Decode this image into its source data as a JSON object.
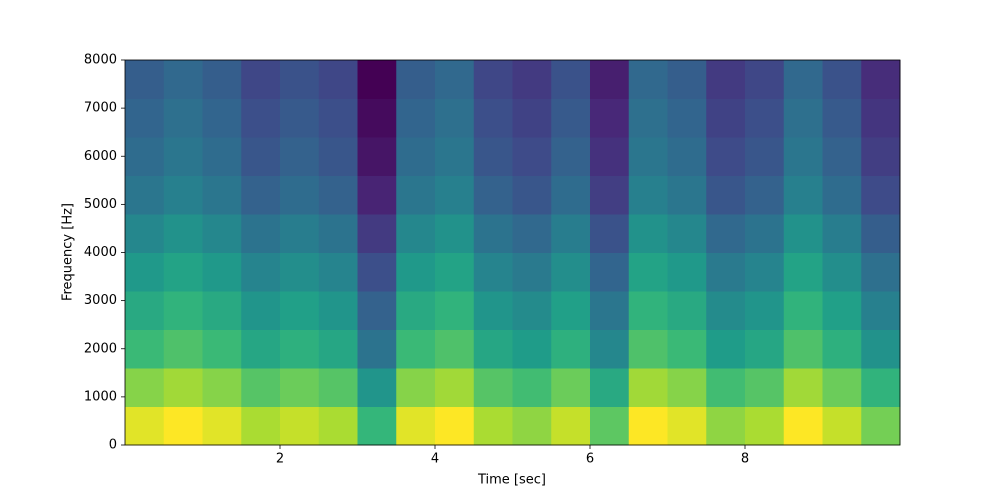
{
  "chart_data": {
    "type": "spectrogram",
    "x_label": "Time [sec]",
    "y_label": "Frequency [Hz]",
    "colormap": "viridis",
    "xlim": [
      0,
      10
    ],
    "xticks": [
      2,
      4,
      6,
      8
    ],
    "ylim": [
      0,
      8000
    ],
    "yticks": [
      0,
      1000,
      2000,
      3000,
      4000,
      5000,
      6000,
      7000,
      8000
    ],
    "values": [
      [
        0.91,
        0.94,
        0.91,
        0.85,
        0.88,
        0.85,
        0.7,
        0.91,
        0.94,
        0.85,
        0.82,
        0.88,
        0.76,
        0.94,
        0.91,
        0.82,
        0.85,
        0.94,
        0.88,
        0.79
      ],
      [
        0.81,
        0.84,
        0.81,
        0.75,
        0.78,
        0.75,
        0.6,
        0.81,
        0.84,
        0.75,
        0.72,
        0.78,
        0.66,
        0.84,
        0.81,
        0.72,
        0.75,
        0.84,
        0.78,
        0.69
      ],
      [
        0.71,
        0.74,
        0.71,
        0.65,
        0.68,
        0.65,
        0.5,
        0.71,
        0.74,
        0.65,
        0.62,
        0.68,
        0.56,
        0.74,
        0.71,
        0.62,
        0.65,
        0.74,
        0.68,
        0.59
      ],
      [
        0.66,
        0.69,
        0.66,
        0.6,
        0.63,
        0.6,
        0.45,
        0.66,
        0.69,
        0.6,
        0.57,
        0.63,
        0.51,
        0.69,
        0.66,
        0.57,
        0.6,
        0.69,
        0.63,
        0.54
      ],
      [
        0.61,
        0.64,
        0.61,
        0.55,
        0.58,
        0.55,
        0.4,
        0.61,
        0.64,
        0.55,
        0.52,
        0.58,
        0.46,
        0.64,
        0.61,
        0.52,
        0.55,
        0.64,
        0.58,
        0.49
      ],
      [
        0.56,
        0.59,
        0.56,
        0.5,
        0.53,
        0.5,
        0.35,
        0.56,
        0.59,
        0.5,
        0.47,
        0.53,
        0.41,
        0.59,
        0.56,
        0.47,
        0.5,
        0.59,
        0.53,
        0.44
      ],
      [
        0.51,
        0.54,
        0.51,
        0.45,
        0.48,
        0.45,
        0.3,
        0.51,
        0.54,
        0.45,
        0.42,
        0.48,
        0.36,
        0.54,
        0.51,
        0.42,
        0.45,
        0.54,
        0.48,
        0.39
      ],
      [
        0.48,
        0.51,
        0.48,
        0.42,
        0.45,
        0.42,
        0.27,
        0.48,
        0.51,
        0.42,
        0.39,
        0.45,
        0.33,
        0.51,
        0.48,
        0.39,
        0.42,
        0.51,
        0.45,
        0.36
      ],
      [
        0.46,
        0.49,
        0.46,
        0.4,
        0.43,
        0.4,
        0.25,
        0.46,
        0.49,
        0.4,
        0.37,
        0.43,
        0.31,
        0.49,
        0.46,
        0.37,
        0.4,
        0.49,
        0.43,
        0.34
      ],
      [
        0.44,
        0.47,
        0.44,
        0.38,
        0.41,
        0.38,
        0.23,
        0.44,
        0.47,
        0.38,
        0.35,
        0.41,
        0.29,
        0.47,
        0.44,
        0.35,
        0.38,
        0.47,
        0.41,
        0.32
      ]
    ]
  }
}
